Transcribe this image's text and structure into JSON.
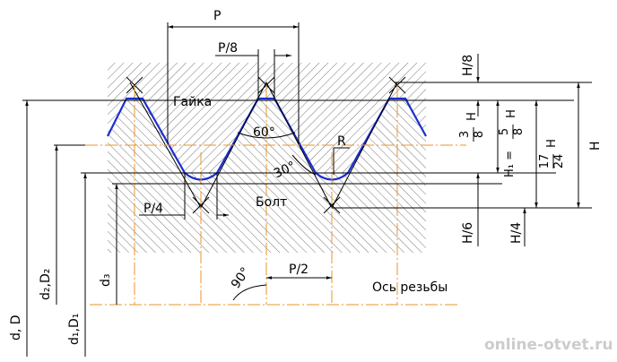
{
  "labels": {
    "pitch": "P",
    "pitch_8": "P/8",
    "nut": "Гайка",
    "angle_60": "60°",
    "radius": "R",
    "angle_30": "30°",
    "bolt": "Болт",
    "pitch_4": "P/4",
    "pitch_2": "P/2",
    "angle_90": "90°",
    "axis": "Ось резьбы",
    "h_8": "H/8",
    "h_6": "H/6",
    "h_4": "H/4",
    "h_full": "H",
    "d_major": "d, D",
    "d_pitch": "d₂,D₂",
    "d_3": "d₃",
    "d_minor": "d₁,D₁",
    "watermark": "online-otvet.ru"
  },
  "fractions": {
    "three_eighths": {
      "num": "3",
      "den": "8",
      "var": "H"
    },
    "h1": {
      "prefix": "H₁ =",
      "num": "5",
      "den": "8",
      "var": "H"
    },
    "seventeen": {
      "num": "17",
      "den": "24",
      "var": "H"
    }
  }
}
